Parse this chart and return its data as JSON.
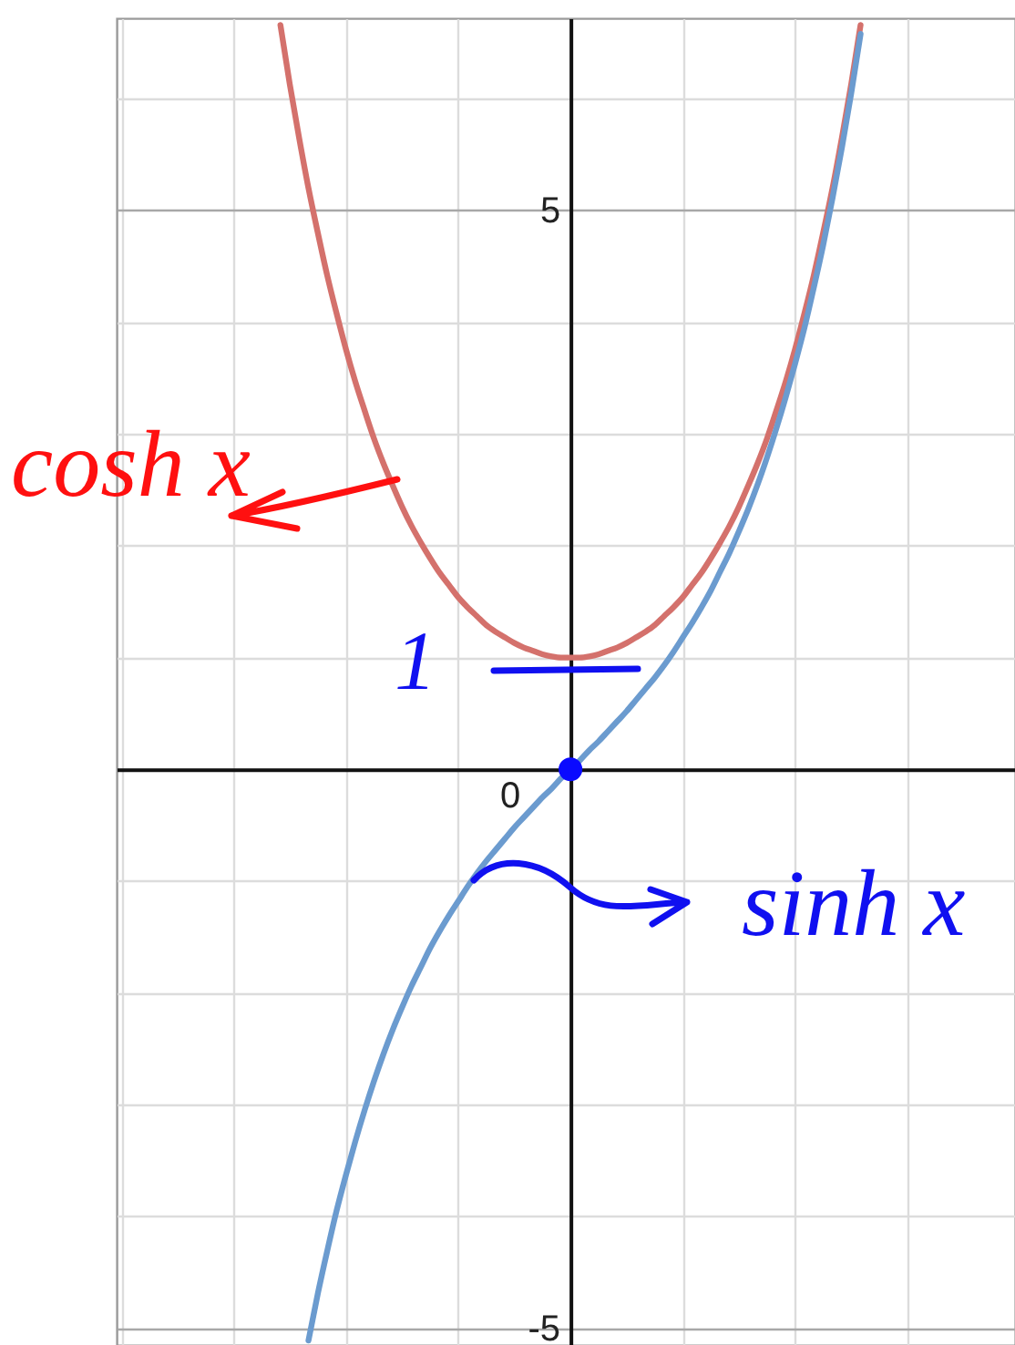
{
  "chart_data": {
    "type": "line",
    "categories": [
      null,
      null,
      null,
      null,
      null,
      null,
      null,
      null,
      null,
      null,
      null,
      null,
      null,
      null,
      null,
      null,
      null,
      null,
      null,
      null,
      null,
      null,
      null,
      null,
      null,
      null,
      null,
      null,
      null,
      null,
      null,
      null,
      null,
      null,
      null,
      null,
      null,
      null,
      null,
      null,
      null,
      null,
      null,
      null,
      null,
      null,
      null,
      null,
      null,
      null,
      null,
      null,
      null,
      null,
      null,
      null,
      null,
      null,
      null,
      null,
      null,
      null,
      null,
      null,
      null,
      null,
      null,
      null,
      null,
      null,
      null,
      null,
      null,
      null,
      null,
      null,
      null,
      null,
      null,
      null,
      null,
      null,
      null,
      null,
      null,
      null,
      null,
      null,
      null,
      null,
      null,
      null,
      null,
      null,
      null,
      null
    ],
    "ylim": [
      -5.15,
      6.72
    ],
    "yticks": [
      -5,
      {
        "value": -4,
        "label": null
      },
      {
        "value": -3,
        "label": null
      },
      {
        "value": -2,
        "label": null
      },
      {
        "value": -1,
        "label": null
      },
      {
        "value": 0,
        "label": null
      },
      {
        "value": 1,
        "label": null
      },
      {
        "value": 2,
        "label": null
      },
      {
        "value": 3,
        "label": null
      },
      {
        "value": 4,
        "label": null
      },
      5,
      {
        "value": 6,
        "label": null
      }
    ],
    "tick_labels": "y",
    "grid": true,
    "series": [
      {
        "color": "#d4716c",
        "values": [
          null,
          null,
          null,
          null,
          null,
          null,
          null,
          null,
          null,
          null,
          null,
          null,
          null,
          null,
          null,
          null,
          null,
          6.66,
          6.13,
          5.65,
          5.2,
          4.8,
          4.42,
          4.08,
          3.76,
          3.47,
          3.21,
          2.96,
          2.74,
          2.54,
          2.35,
          2.18,
          2.03,
          1.89,
          1.76,
          1.65,
          1.54,
          1.45,
          1.37,
          1.29,
          1.23,
          1.18,
          1.13,
          1.09,
          1.06,
          1.03,
          1.01,
          1.0,
          1,
          1.0,
          1.01,
          1.03,
          1.06,
          1.09,
          1.13,
          1.18,
          1.23,
          1.29,
          1.37,
          1.45,
          1.54,
          1.65,
          1.76,
          1.89,
          2.03,
          2.18,
          2.35,
          2.54,
          2.74,
          2.96,
          3.21,
          3.47,
          3.76,
          4.08,
          4.42,
          4.8,
          5.2,
          5.65,
          6.13,
          6.66,
          null,
          null,
          null,
          null,
          null,
          null,
          null,
          null,
          null,
          null,
          null,
          null,
          null,
          null,
          null,
          null
        ]
      },
      {
        "color": "#6b9bcf",
        "values": [
          null,
          null,
          null,
          null,
          null,
          null,
          null,
          null,
          null,
          null,
          null,
          null,
          null,
          null,
          null,
          null,
          null,
          null,
          null,
          null,
          -5.11,
          -4.69,
          -4.31,
          -3.95,
          -3.63,
          -3.33,
          -3.05,
          -2.79,
          -2.55,
          -2.33,
          -2.13,
          -1.94,
          -1.77,
          -1.6,
          -1.45,
          -1.31,
          -1.18,
          -1.05,
          -0.93,
          -0.82,
          -0.72,
          -0.62,
          -0.52,
          -0.43,
          -0.34,
          -0.25,
          -0.17,
          -0.08,
          0,
          0.08,
          0.17,
          0.25,
          0.34,
          0.43,
          0.52,
          0.62,
          0.72,
          0.82,
          0.93,
          1.05,
          1.18,
          1.31,
          1.45,
          1.6,
          1.77,
          1.94,
          2.13,
          2.33,
          2.55,
          2.79,
          3.05,
          3.33,
          3.63,
          3.95,
          4.31,
          4.69,
          5.11,
          5.56,
          6.05,
          6.58,
          null,
          null,
          null,
          null,
          null,
          null,
          null,
          null,
          null,
          null,
          null,
          null,
          null,
          null,
          null,
          null
        ]
      },
      {
        "type": "scatter",
        "color": "#0a0aff",
        "values": [
          null,
          null,
          null,
          null,
          null,
          null,
          null,
          null,
          null,
          null,
          null,
          null,
          null,
          null,
          null,
          null,
          null,
          null,
          null,
          null,
          null,
          null,
          null,
          null,
          null,
          null,
          null,
          null,
          null,
          null,
          null,
          null,
          null,
          null,
          null,
          null,
          null,
          null,
          null,
          null,
          null,
          null,
          null,
          null,
          null,
          null,
          null,
          null,
          0,
          null,
          null,
          null,
          null,
          null,
          null,
          null,
          null,
          null,
          null,
          null,
          null,
          null,
          null,
          null,
          null,
          null,
          null,
          null,
          null,
          null,
          null,
          null,
          null,
          null,
          null,
          null,
          null,
          null,
          null,
          null,
          null,
          null,
          null,
          null,
          null,
          null,
          null,
          null,
          null,
          null,
          null,
          null,
          null,
          null,
          null,
          null
        ]
      }
    ],
    "annotations": [
      "cosh x",
      "1",
      "0",
      "sinh x"
    ]
  }
}
